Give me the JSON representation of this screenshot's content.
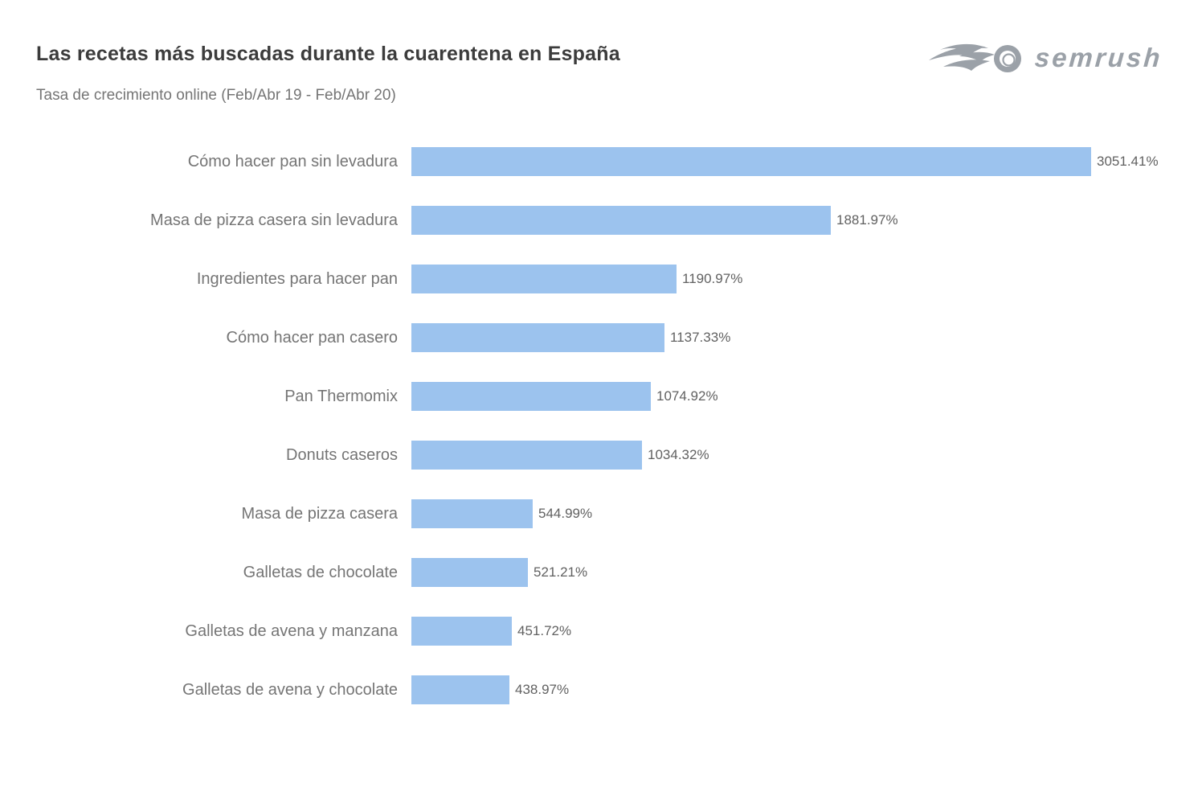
{
  "header": {
    "title": "Las recetas más buscadas durante la cuarentena en España",
    "subtitle": "Tasa de crecimiento online (Feb/Abr 19 - Feb/Abr 20)",
    "logo_text": "semrush"
  },
  "colors": {
    "bar": "#9cc3ee",
    "title_text": "#3c3c3c",
    "subtitle_text": "#757575",
    "category_label": "#757575",
    "value_label": "#616161",
    "logo": "#9ba1a8",
    "background": "#ffffff"
  },
  "chart_data": {
    "type": "bar",
    "orientation": "horizontal",
    "title": "Las recetas más buscadas durante la cuarentena en España",
    "subtitle": "Tasa de crecimiento online (Feb/Abr 19 - Feb/Abr 20)",
    "xlabel": "",
    "ylabel": "",
    "xlim": [
      0,
      3200
    ],
    "grid": false,
    "legend": false,
    "categories": [
      "Cómo hacer pan sin levadura",
      "Masa de pizza casera sin levadura",
      "Ingredientes para hacer pan",
      "Cómo hacer pan casero",
      "Pan Thermomix",
      "Donuts caseros",
      "Masa de pizza casera",
      "Galletas de chocolate",
      "Galletas de avena y manzana",
      "Galletas de avena y chocolate"
    ],
    "values": [
      3051.41,
      1881.97,
      1190.97,
      1137.33,
      1074.92,
      1034.32,
      544.99,
      521.21,
      451.72,
      438.97
    ],
    "value_labels": [
      "3051.41%",
      "1881.97%",
      "1190.97%",
      "1137.33%",
      "1074.92%",
      "1034.32%",
      "544.99%",
      "521.21%",
      "451.72%",
      "438.97%"
    ]
  }
}
